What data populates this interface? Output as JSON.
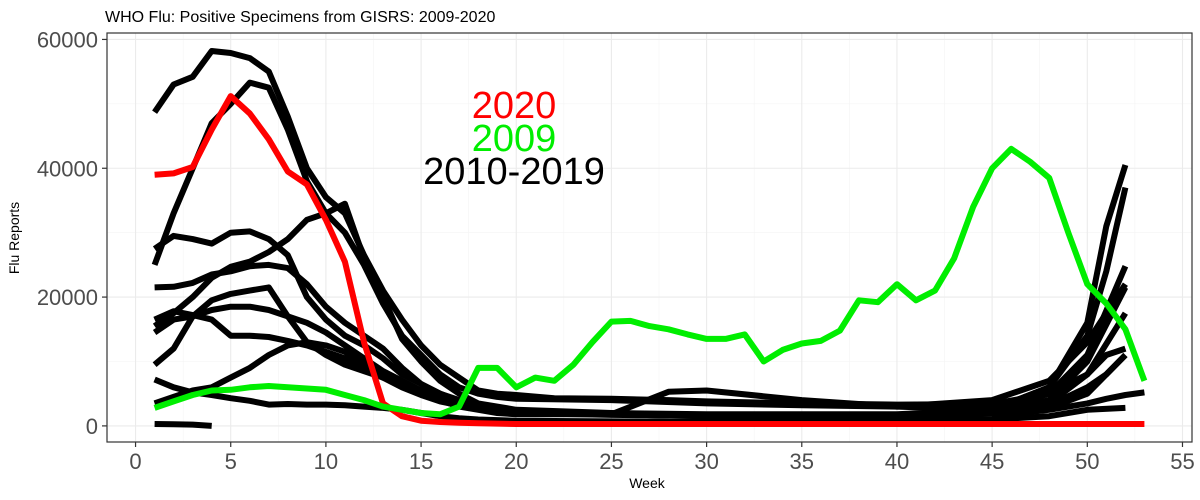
{
  "chart_data": {
    "type": "line",
    "title": "WHO Flu: Positive Specimens from GISRS: 2009-2020",
    "xlabel": "Week",
    "ylabel": "Flu Reports",
    "xlim": [
      -1.5,
      55.5
    ],
    "ylim": [
      -2500,
      61000
    ],
    "x_ticks": [
      0,
      5,
      10,
      15,
      20,
      25,
      30,
      35,
      40,
      45,
      50,
      55
    ],
    "y_ticks": [
      0,
      20000,
      40000,
      60000
    ],
    "y_tick_labels": [
      "0",
      "20000",
      "40000",
      "60000"
    ],
    "grid": true,
    "legend": [
      {
        "label": "2020",
        "color": "#ff0000"
      },
      {
        "label": "2009",
        "color": "#00ee00"
      },
      {
        "label": "2010-2019",
        "color": "#000000"
      }
    ],
    "series": [
      {
        "name": "2010-2019",
        "color": "#000000",
        "x": [
          1,
          2,
          3,
          4,
          5,
          6,
          7,
          8,
          9,
          10,
          11,
          12,
          13,
          14,
          15,
          16,
          17,
          18,
          19,
          20,
          22,
          25,
          28,
          30,
          35,
          40,
          45,
          48,
          50,
          51,
          52
        ],
        "values": [
          48700,
          53000,
          54200,
          58200,
          57900,
          57100,
          55000,
          48000,
          40000,
          35500,
          33000,
          26500,
          21000,
          16500,
          12500,
          9500,
          7500,
          5500,
          5000,
          4800,
          4300,
          4200,
          4000,
          3800,
          3500,
          3300,
          3400,
          5000,
          8000,
          11000,
          12000
        ]
      },
      {
        "name": "2010-2019",
        "color": "#000000",
        "x": [
          1,
          2,
          3,
          4,
          5,
          6,
          7,
          8,
          9,
          10,
          11,
          12,
          13,
          14,
          15,
          16,
          17,
          18,
          19,
          20,
          25,
          30,
          35,
          40,
          45,
          48,
          50,
          52
        ],
        "values": [
          25000,
          33000,
          40000,
          47000,
          50000,
          53300,
          52500,
          46000,
          38000,
          33000,
          30000,
          25000,
          19000,
          14000,
          11000,
          8000,
          6000,
          5000,
          4500,
          4200,
          4000,
          3500,
          3200,
          3000,
          4000,
          7000,
          13000,
          22000
        ]
      },
      {
        "name": "2010-2019",
        "color": "#000000",
        "x": [
          1,
          2,
          3,
          4,
          5,
          6,
          7,
          8,
          9,
          10,
          11,
          12,
          13,
          14,
          15,
          16,
          17,
          18,
          19,
          20,
          25,
          30,
          35,
          40,
          45,
          48,
          50,
          51,
          52
        ],
        "values": [
          15500,
          17500,
          20000,
          23000,
          24700,
          25500,
          27000,
          29000,
          32000,
          33000,
          34500,
          26000,
          20000,
          13500,
          10000,
          7000,
          5000,
          3500,
          3000,
          2500,
          2000,
          1800,
          1800,
          1800,
          2500,
          6000,
          14000,
          24000,
          37000
        ]
      },
      {
        "name": "2010-2019",
        "color": "#000000",
        "x": [
          1,
          2,
          3,
          4,
          5,
          6,
          7,
          8,
          9,
          10,
          11,
          12,
          13,
          14,
          15,
          16,
          17,
          18,
          19,
          20,
          25,
          30,
          35,
          40,
          45,
          48,
          50,
          51,
          52
        ],
        "values": [
          27500,
          29500,
          29000,
          28300,
          30000,
          30200,
          29000,
          26500,
          20000,
          16500,
          14000,
          12500,
          10500,
          8000,
          6500,
          5000,
          4000,
          3000,
          2500,
          2200,
          1800,
          1500,
          1500,
          1500,
          2500,
          6000,
          16000,
          31000,
          40500
        ]
      },
      {
        "name": "2010-2019",
        "color": "#000000",
        "x": [
          1,
          2,
          3,
          4,
          5,
          6,
          7,
          8,
          9,
          10,
          11,
          12,
          13,
          14,
          15,
          16,
          17,
          18,
          19,
          20,
          25,
          30,
          35,
          40,
          45,
          48,
          50,
          52
        ],
        "values": [
          21500,
          21600,
          22200,
          23500,
          24000,
          24800,
          25000,
          24500,
          22000,
          18500,
          16000,
          14000,
          12000,
          9000,
          6500,
          5000,
          3800,
          3000,
          2500,
          2200,
          1800,
          1600,
          1700,
          1700,
          2200,
          5000,
          11000,
          24800
        ]
      },
      {
        "name": "2010-2019",
        "color": "#000000",
        "x": [
          1,
          2,
          3,
          4,
          5,
          6,
          7,
          8,
          9,
          10,
          11,
          12,
          13,
          14,
          15,
          16,
          17,
          18,
          19,
          20,
          25,
          30,
          35,
          40,
          45,
          48,
          50,
          52
        ],
        "values": [
          14500,
          16500,
          17000,
          18000,
          18500,
          18500,
          18000,
          17000,
          16000,
          14500,
          12500,
          10500,
          8500,
          7000,
          5500,
          4500,
          3500,
          2800,
          2300,
          2000,
          1700,
          1600,
          1600,
          1600,
          2000,
          4000,
          10000,
          21500
        ]
      },
      {
        "name": "2010-2019",
        "color": "#000000",
        "x": [
          1,
          2,
          3,
          4,
          5,
          6,
          7,
          8,
          9,
          10,
          11,
          12,
          13,
          14,
          15,
          16,
          17,
          18,
          19,
          20,
          25,
          30,
          35,
          40,
          45,
          48,
          50,
          52
        ],
        "values": [
          9500,
          12000,
          17000,
          19500,
          20500,
          21000,
          21500,
          17000,
          13000,
          11000,
          9500,
          8500,
          7500,
          6500,
          5500,
          4600,
          3800,
          3100,
          2600,
          2200,
          1800,
          1600,
          1500,
          1600,
          2100,
          3500,
          8000,
          17500
        ]
      },
      {
        "name": "2010-2019",
        "color": "#000000",
        "x": [
          1,
          2,
          3,
          4,
          5,
          6,
          7,
          8,
          9,
          10,
          11,
          12,
          13,
          14,
          15,
          16,
          17,
          18,
          19,
          20,
          25,
          30,
          35,
          40,
          45,
          48,
          50,
          52
        ],
        "values": [
          16500,
          17800,
          17200,
          16500,
          14000,
          14000,
          13800,
          13200,
          12500,
          11500,
          10500,
          9000,
          7500,
          6000,
          4800,
          3800,
          3200,
          2800,
          2500,
          2200,
          1800,
          1500,
          1500,
          1500,
          1900,
          2800,
          5000,
          11000
        ]
      },
      {
        "name": "2010-2019",
        "color": "#000000",
        "x": [
          1,
          2,
          3,
          4,
          5,
          6,
          7,
          8,
          9,
          10,
          11,
          12,
          13,
          14,
          15,
          16,
          17,
          18,
          19,
          20,
          25,
          28,
          30,
          35,
          40,
          45,
          48,
          50,
          51,
          52
        ],
        "values": [
          3500,
          4500,
          5500,
          6000,
          7500,
          9000,
          11000,
          12500,
          13000,
          12500,
          11500,
          9500,
          8000,
          6500,
          5000,
          4000,
          3000,
          2500,
          2000,
          1800,
          1800,
          5300,
          5500,
          4000,
          3000,
          2500,
          3200,
          6000,
          8000,
          11000
        ]
      },
      {
        "name": "2010-2019",
        "color": "#000000",
        "x": [
          1,
          2,
          3,
          4,
          5,
          6,
          7,
          8,
          9,
          10,
          11,
          12,
          13,
          14,
          15,
          16,
          17,
          18,
          19,
          20,
          25,
          30,
          35,
          40,
          45,
          48,
          50,
          52
        ],
        "values": [
          7200,
          6000,
          5200,
          4800,
          4300,
          3900,
          3300,
          3400,
          3300,
          3300,
          3200,
          3000,
          2800,
          2500,
          2000,
          1500,
          1200,
          1000,
          900,
          800,
          700,
          600,
          600,
          700,
          1000,
          1500,
          2500,
          2800
        ]
      },
      {
        "name": "2010-2019",
        "color": "#000000",
        "x": [
          45,
          48,
          50,
          51,
          52,
          53
        ],
        "values": [
          1500,
          2500,
          3500,
          4200,
          4800,
          5200
        ]
      },
      {
        "name": "2010-2019",
        "color": "#000000",
        "x": [
          1,
          2,
          3,
          4
        ],
        "values": [
          300,
          250,
          200,
          0
        ]
      },
      {
        "name": "2020",
        "color": "#ff0000",
        "x": [
          1,
          2,
          3,
          4,
          5,
          6,
          7,
          8,
          9,
          10,
          11,
          12,
          13,
          14,
          15,
          16,
          17,
          18,
          20,
          25,
          30,
          35,
          40,
          45,
          50,
          53
        ],
        "values": [
          39000,
          39200,
          40200,
          46000,
          51200,
          48500,
          44500,
          39500,
          37500,
          32000,
          25500,
          13000,
          3500,
          1500,
          800,
          600,
          500,
          400,
          300,
          300,
          300,
          300,
          300,
          300,
          300,
          300
        ]
      },
      {
        "name": "2009",
        "color": "#00ee00",
        "x": [
          1,
          2,
          3,
          4,
          5,
          6,
          7,
          8,
          9,
          10,
          11,
          12,
          13,
          14,
          15,
          16,
          17,
          18,
          19,
          20,
          21,
          22,
          23,
          24,
          25,
          26,
          27,
          28,
          29,
          30,
          31,
          32,
          33,
          34,
          35,
          36,
          37,
          38,
          39,
          40,
          41,
          42,
          43,
          44,
          45,
          46,
          47,
          48,
          49,
          50,
          51,
          52,
          53
        ],
        "values": [
          2800,
          3800,
          4800,
          5500,
          5600,
          6000,
          6200,
          6000,
          5800,
          5600,
          4800,
          4000,
          3000,
          2500,
          2000,
          1800,
          3000,
          9000,
          9000,
          6000,
          7500,
          7000,
          9500,
          13000,
          16200,
          16300,
          15500,
          15000,
          14200,
          13500,
          13500,
          14200,
          10000,
          11800,
          12800,
          13200,
          14800,
          19500,
          19200,
          22000,
          19500,
          21000,
          26000,
          34000,
          40000,
          43000,
          41000,
          38500,
          30000,
          22000,
          19000,
          15000,
          7000
        ]
      }
    ]
  }
}
